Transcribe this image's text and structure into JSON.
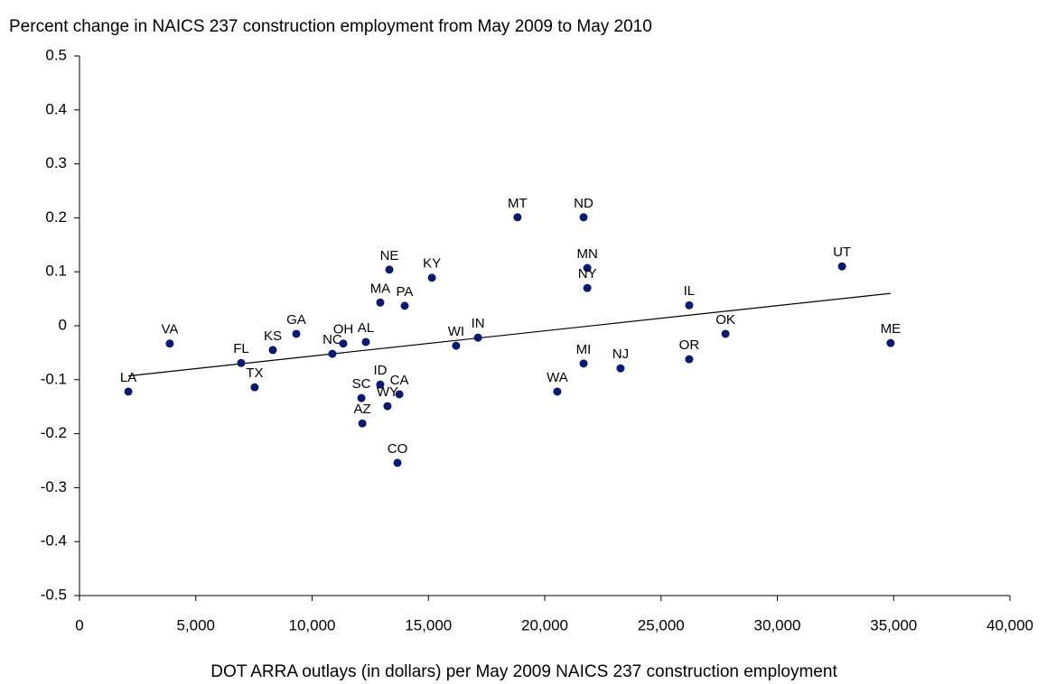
{
  "chart_data": {
    "type": "scatter",
    "title": "Percent change in NAICS 237 construction employment from May 2009 to May 2010",
    "x_label": "DOT ARRA outlays (in dollars) per May 2009 NAICS 237 construction employment",
    "labels": [
      "LA",
      "VA",
      "FL",
      "TX",
      "KS",
      "GA",
      "NC",
      "OH",
      "AL",
      "SC",
      "ID",
      "AZ",
      "WY",
      "CA",
      "CO",
      "NE",
      "MA",
      "PA",
      "KY",
      "WI",
      "IN",
      "MT",
      "ND",
      "MN",
      "NY",
      "MI",
      "WA",
      "NJ",
      "IL",
      "OR",
      "OK",
      "UT",
      "ME"
    ],
    "x": [
      2100,
      3880,
      6950,
      7530,
      8310,
      9320,
      10870,
      11340,
      12310,
      12120,
      12930,
      12160,
      13240,
      13750,
      13670,
      13320,
      12930,
      13980,
      15150,
      16190,
      17130,
      18830,
      21670,
      21830,
      21830,
      21670,
      20540,
      23260,
      26210,
      26210,
      27770,
      32780,
      34870
    ],
    "y": [
      -0.122,
      -0.033,
      -0.069,
      -0.114,
      -0.045,
      -0.015,
      -0.052,
      -0.033,
      -0.03,
      -0.134,
      -0.109,
      -0.181,
      -0.149,
      -0.127,
      -0.254,
      0.104,
      0.043,
      0.037,
      0.089,
      -0.037,
      -0.022,
      0.201,
      0.201,
      0.107,
      0.07,
      -0.07,
      -0.122,
      -0.079,
      0.038,
      -0.062,
      -0.015,
      0.11,
      -0.032
    ],
    "color": "#0a1a6e",
    "trendline": {
      "x": [
        2100,
        34870
      ],
      "y": [
        -0.093,
        0.06
      ]
    },
    "xlim": [
      0,
      40000
    ],
    "xticks": [
      0,
      {
        "value": 5000,
        "label": "5,000"
      },
      {
        "value": 10000,
        "label": "10,000"
      },
      {
        "value": 15000,
        "label": "15,000"
      },
      {
        "value": 20000,
        "label": "20,000"
      },
      {
        "value": 25000,
        "label": "25,000"
      },
      {
        "value": 30000,
        "label": "30,000"
      },
      {
        "value": 35000,
        "label": "35,000"
      },
      {
        "value": 40000,
        "label": "40,000"
      }
    ],
    "ylim": [
      -0.5,
      0.5
    ],
    "yticks": [
      -0.5,
      -0.4,
      -0.3,
      -0.2,
      -0.1,
      0,
      0.1,
      0.2,
      0.3,
      0.4,
      0.5
    ],
    "grid": false
  }
}
